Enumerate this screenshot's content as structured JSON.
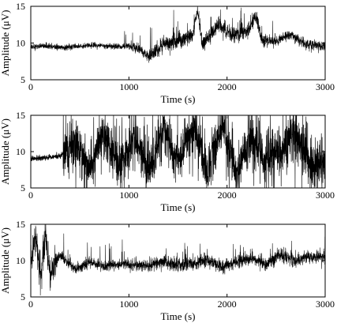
{
  "chart_data": [
    {
      "type": "line",
      "xlabel": "Time (s)",
      "ylabel": "Amplitude (μV)",
      "xlim": [
        0,
        3000
      ],
      "ylim": [
        5,
        15
      ],
      "xticks": [
        0,
        1000,
        2000,
        3000
      ],
      "yticks": [
        5,
        10,
        15
      ],
      "x": [
        0,
        150,
        300,
        450,
        600,
        750,
        900,
        1050,
        1200,
        1350,
        1500,
        1650,
        1700,
        1750,
        1900,
        2050,
        2200,
        2300,
        2350,
        2500,
        2650,
        2800,
        2950,
        3000
      ],
      "series": [
        {
          "values": [
            9.5,
            9.6,
            9.4,
            9.5,
            9.7,
            9.6,
            9.5,
            9.6,
            8.2,
            9.8,
            10.3,
            11.0,
            14.8,
            9.5,
            12.5,
            11.2,
            11.6,
            13.6,
            10.5,
            10.2,
            11.2,
            9.8,
            9.6,
            9.5
          ],
          "color": "#000000"
        }
      ],
      "grid": false,
      "style": "dense-noisy-trace"
    },
    {
      "type": "line",
      "xlabel": "Time (s)",
      "ylabel": "Amplitude (μV)",
      "xlim": [
        0,
        3000
      ],
      "ylim": [
        5,
        15
      ],
      "xticks": [
        0,
        1000,
        2000,
        3000
      ],
      "yticks": [
        5,
        10,
        15
      ],
      "x": [
        0,
        150,
        300,
        450,
        600,
        750,
        900,
        1050,
        1200,
        1350,
        1500,
        1650,
        1800,
        1950,
        2100,
        2250,
        2400,
        2550,
        2700,
        2850,
        3000
      ],
      "series": [
        {
          "values": [
            9.0,
            9.2,
            9.4,
            11.5,
            7.5,
            12.5,
            8.0,
            11.8,
            7.2,
            12.8,
            8.6,
            13.5,
            7.2,
            13.8,
            7.0,
            12.2,
            8.8,
            10.5,
            12.8,
            8.2,
            9.0
          ],
          "color": "#000000"
        }
      ],
      "grid": false,
      "style": "dense-noisy-trace"
    },
    {
      "type": "line",
      "xlabel": "Time (s)",
      "ylabel": "Amplitude (μV)",
      "xlim": [
        0,
        3000
      ],
      "ylim": [
        5,
        15
      ],
      "xticks": [
        0,
        1000,
        2000,
        3000
      ],
      "yticks": [
        5,
        10,
        15
      ],
      "x": [
        0,
        50,
        100,
        150,
        200,
        300,
        450,
        600,
        750,
        900,
        1050,
        1200,
        1350,
        1500,
        1650,
        1800,
        1950,
        2100,
        2250,
        2400,
        2550,
        2700,
        2850,
        3000
      ],
      "series": [
        {
          "values": [
            9.5,
            13.0,
            7.8,
            13.8,
            8.0,
            10.8,
            8.8,
            9.7,
            9.2,
            9.5,
            9.4,
            9.3,
            9.8,
            9.4,
            9.6,
            10.1,
            9.2,
            9.8,
            10.3,
            9.5,
            10.8,
            10.0,
            10.5,
            10.6
          ],
          "color": "#000000"
        }
      ],
      "grid": false,
      "style": "dense-noisy-trace"
    }
  ]
}
